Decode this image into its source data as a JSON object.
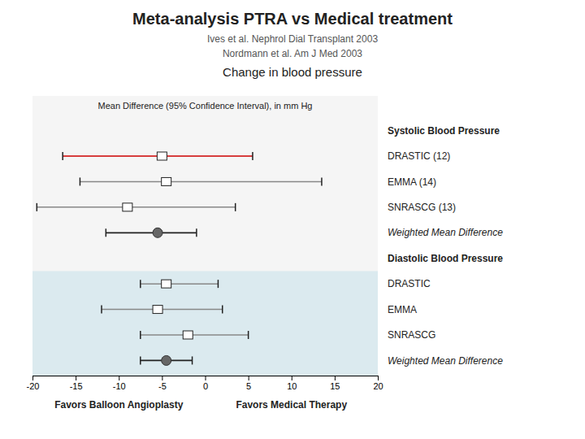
{
  "chart_data": {
    "type": "forest",
    "title": "Meta-analysis PTRA vs Medical treatment",
    "subtitle": [
      "Ives et al. Nephrol Dial Transplant 2003",
      "Nordmann et al. Am J Med 2003",
      "Change in blood pressure"
    ],
    "xlabel": "Mean Difference (95% Confidence Interval), in mm Hg",
    "annotations": [
      "Favors Balloon Angioplasty",
      "Favors Medical Therapy"
    ],
    "xlim": [
      -20,
      20
    ],
    "xticks": [
      -20,
      -15,
      -10,
      -5,
      0,
      5,
      10,
      15,
      20
    ],
    "categories": [
      "Systolic Blood Pressure",
      "DRASTIC (12)",
      "EMMA (14)",
      "SNRASCG (13)",
      "Weighted Mean Difference",
      "Diastolic Blood Pressure",
      "DRASTIC",
      "EMMA",
      "SNRASCG",
      "Weighted Mean Difference"
    ],
    "series": [
      {
        "marker": "square",
        "values": [
          null,
          -5.0,
          -4.5,
          -9.0,
          null,
          null,
          -4.5,
          -5.5,
          -2.0,
          null
        ],
        "ci_low": [
          null,
          -16.5,
          -14.5,
          -19.5,
          null,
          null,
          -7.5,
          -12.0,
          -7.5,
          null
        ],
        "ci_high": [
          null,
          5.5,
          13.5,
          3.5,
          null,
          null,
          1.5,
          2.0,
          5.0,
          null
        ],
        "colors": [
          null,
          "#cc0000",
          "#888888",
          "#888888",
          null,
          null,
          "#888888",
          "#888888",
          "#888888",
          null
        ]
      },
      {
        "marker": "circle",
        "color": "#666666",
        "values": [
          null,
          null,
          null,
          null,
          -5.5,
          null,
          null,
          null,
          null,
          -4.5
        ],
        "ci_low": [
          null,
          null,
          null,
          null,
          -11.5,
          null,
          null,
          null,
          null,
          -7.5
        ],
        "ci_high": [
          null,
          null,
          null,
          null,
          -1.0,
          null,
          null,
          null,
          null,
          -1.5
        ]
      }
    ]
  }
}
